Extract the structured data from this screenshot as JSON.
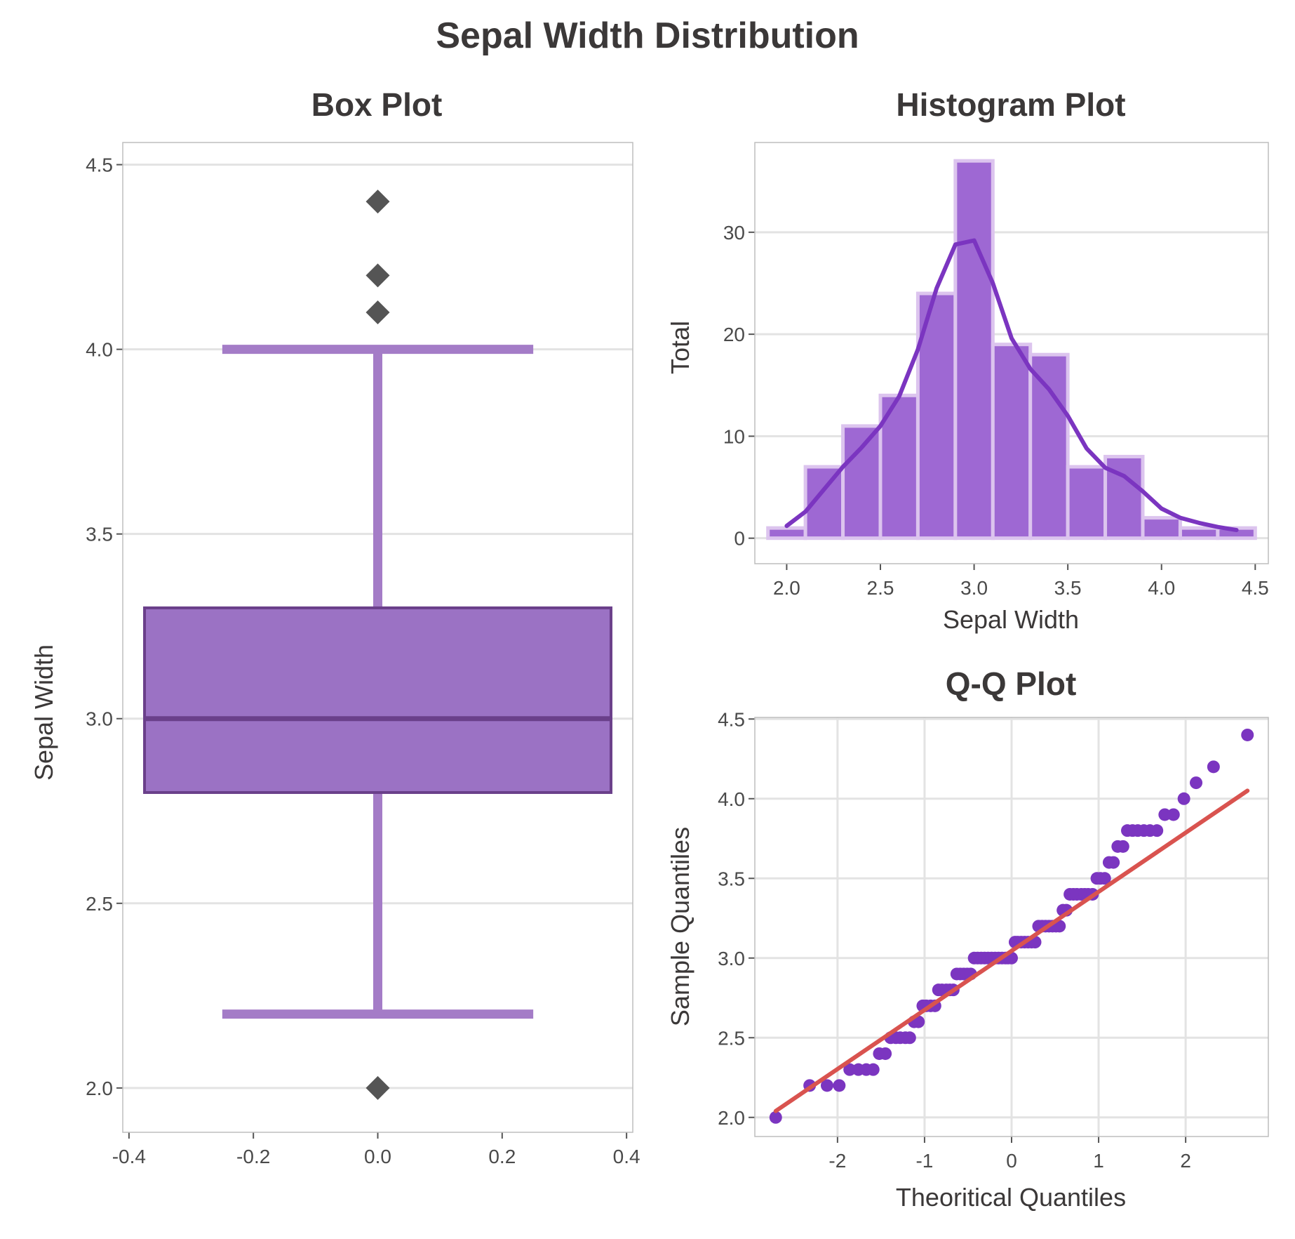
{
  "figure_title": "Sepal Width Distribution",
  "colors": {
    "purple_fill": "#9b72c4",
    "purple_box_edge": "#6a3f8a",
    "purple_whisker": "#a47cc7",
    "purple_line": "#7b35c0",
    "hist_bar": "#9e68d3",
    "hist_edge": "#dcc4ee",
    "outlier": "#555555",
    "qq_point": "#7b35c0",
    "qq_line": "#d9534f",
    "grid": "#e3e3e3",
    "frame": "#bdbdbd"
  },
  "chart_data": [
    {
      "type": "box",
      "title": "Box Plot",
      "xlabel": "",
      "ylabel": "Sepal Width",
      "xlim": [
        -0.41,
        0.41
      ],
      "ylim": [
        1.88,
        4.56
      ],
      "xticks": [
        -0.4,
        -0.2,
        0.0,
        0.2,
        0.4
      ],
      "xtick_labels": [
        "-0.4",
        "-0.2",
        "0.0",
        "0.2",
        "0.4"
      ],
      "yticks": [
        2.0,
        2.5,
        3.0,
        3.5,
        4.0,
        4.5
      ],
      "ytick_labels": [
        "2.0",
        "2.5",
        "3.0",
        "3.5",
        "4.0",
        "4.5"
      ],
      "grid": "horizontal",
      "box": {
        "position": 0.0,
        "box_half_width": 0.375,
        "cap_half_width": 0.25,
        "q1": 2.8,
        "median": 3.0,
        "q3": 3.3,
        "whisker_low": 2.2,
        "whisker_high": 4.0
      },
      "outliers": [
        2.0,
        4.1,
        4.2,
        4.4
      ]
    },
    {
      "type": "bar",
      "subtype": "histogram",
      "title": "Histogram Plot",
      "xlabel": "Sepal Width",
      "ylabel": "Total",
      "xlim": [
        1.83,
        4.57
      ],
      "ylim": [
        -2.5,
        38.8
      ],
      "xticks": [
        2.0,
        2.5,
        3.0,
        3.5,
        4.0,
        4.5
      ],
      "xtick_labels": [
        "2.0",
        "2.5",
        "3.0",
        "3.5",
        "4.0",
        "4.5"
      ],
      "yticks": [
        0,
        10,
        20,
        30
      ],
      "ytick_labels": [
        "0",
        "10",
        "20",
        "30"
      ],
      "grid": "horizontal",
      "bin_edges": [
        1.9,
        2.1,
        2.3,
        2.5,
        2.7,
        2.9,
        3.1,
        3.3,
        3.5,
        3.7,
        3.9,
        4.1,
        4.3,
        4.5
      ],
      "counts": [
        1,
        7,
        11,
        14,
        24,
        37,
        19,
        18,
        7,
        8,
        2,
        1,
        1
      ],
      "kde": {
        "x": [
          2.0,
          2.1,
          2.2,
          2.3,
          2.4,
          2.5,
          2.6,
          2.7,
          2.8,
          2.9,
          3.0,
          3.1,
          3.2,
          3.3,
          3.4,
          3.5,
          3.6,
          3.7,
          3.8,
          3.9,
          4.0,
          4.1,
          4.2,
          4.3,
          4.4
        ],
        "y": [
          1.2,
          2.6,
          4.8,
          7.0,
          8.9,
          11.0,
          13.9,
          18.5,
          24.5,
          28.8,
          29.2,
          25.0,
          19.6,
          16.6,
          14.6,
          12.0,
          8.8,
          6.9,
          6.1,
          4.6,
          2.9,
          2.0,
          1.5,
          1.1,
          0.8
        ]
      }
    },
    {
      "type": "scatter",
      "subtype": "qq",
      "title": "Q-Q Plot",
      "xlabel": "Theoritical Quantiles",
      "ylabel": "Sample Quantiles",
      "xlim": [
        -2.95,
        2.95
      ],
      "ylim": [
        1.88,
        4.51
      ],
      "xticks": [
        -2,
        -1,
        0,
        1,
        2
      ],
      "xtick_labels": [
        "-2",
        "-1",
        "0",
        "1",
        "2"
      ],
      "yticks": [
        2.0,
        2.5,
        3.0,
        3.5,
        4.0,
        4.5
      ],
      "ytick_labels": [
        "2.0",
        "2.5",
        "3.0",
        "3.5",
        "4.0",
        "4.5"
      ],
      "grid": "both",
      "points": {
        "x": [
          -2.71,
          -2.32,
          -2.12,
          -1.98,
          -1.86,
          -1.76,
          -1.67,
          -1.59,
          -1.52,
          -1.45,
          -1.39,
          -1.33,
          -1.28,
          -1.22,
          -1.17,
          -1.12,
          -1.07,
          -1.02,
          -0.98,
          -0.93,
          -0.88,
          -0.84,
          -0.8,
          -0.75,
          -0.71,
          -0.67,
          -0.63,
          -0.59,
          -0.55,
          -0.51,
          -0.47,
          -0.43,
          -0.39,
          -0.35,
          -0.31,
          -0.27,
          -0.23,
          -0.19,
          -0.15,
          -0.11,
          -0.07,
          -0.04,
          0.0,
          0.04,
          0.07,
          0.11,
          0.15,
          0.19,
          0.23,
          0.27,
          0.31,
          0.35,
          0.39,
          0.43,
          0.47,
          0.51,
          0.55,
          0.59,
          0.63,
          0.67,
          0.71,
          0.75,
          0.8,
          0.84,
          0.88,
          0.93,
          0.98,
          1.02,
          1.07,
          1.12,
          1.17,
          1.22,
          1.28,
          1.33,
          1.39,
          1.45,
          1.52,
          1.59,
          1.67,
          1.76,
          1.86,
          1.98,
          2.12,
          2.32,
          2.71
        ],
        "y": [
          2.0,
          2.2,
          2.2,
          2.2,
          2.3,
          2.3,
          2.3,
          2.3,
          2.4,
          2.4,
          2.5,
          2.5,
          2.5,
          2.5,
          2.5,
          2.6,
          2.6,
          2.7,
          2.7,
          2.7,
          2.7,
          2.8,
          2.8,
          2.8,
          2.8,
          2.8,
          2.9,
          2.9,
          2.9,
          2.9,
          2.9,
          3.0,
          3.0,
          3.0,
          3.0,
          3.0,
          3.0,
          3.0,
          3.0,
          3.0,
          3.0,
          3.0,
          3.0,
          3.1,
          3.1,
          3.1,
          3.1,
          3.1,
          3.1,
          3.1,
          3.2,
          3.2,
          3.2,
          3.2,
          3.2,
          3.2,
          3.2,
          3.3,
          3.3,
          3.4,
          3.4,
          3.4,
          3.4,
          3.4,
          3.4,
          3.4,
          3.5,
          3.5,
          3.5,
          3.6,
          3.6,
          3.7,
          3.7,
          3.8,
          3.8,
          3.8,
          3.8,
          3.8,
          3.8,
          3.9,
          3.9,
          4.0,
          4.1,
          4.2,
          4.4
        ]
      },
      "reference_line": {
        "x": [
          -2.71,
          2.71
        ],
        "y": [
          2.04,
          4.05
        ]
      }
    }
  ]
}
